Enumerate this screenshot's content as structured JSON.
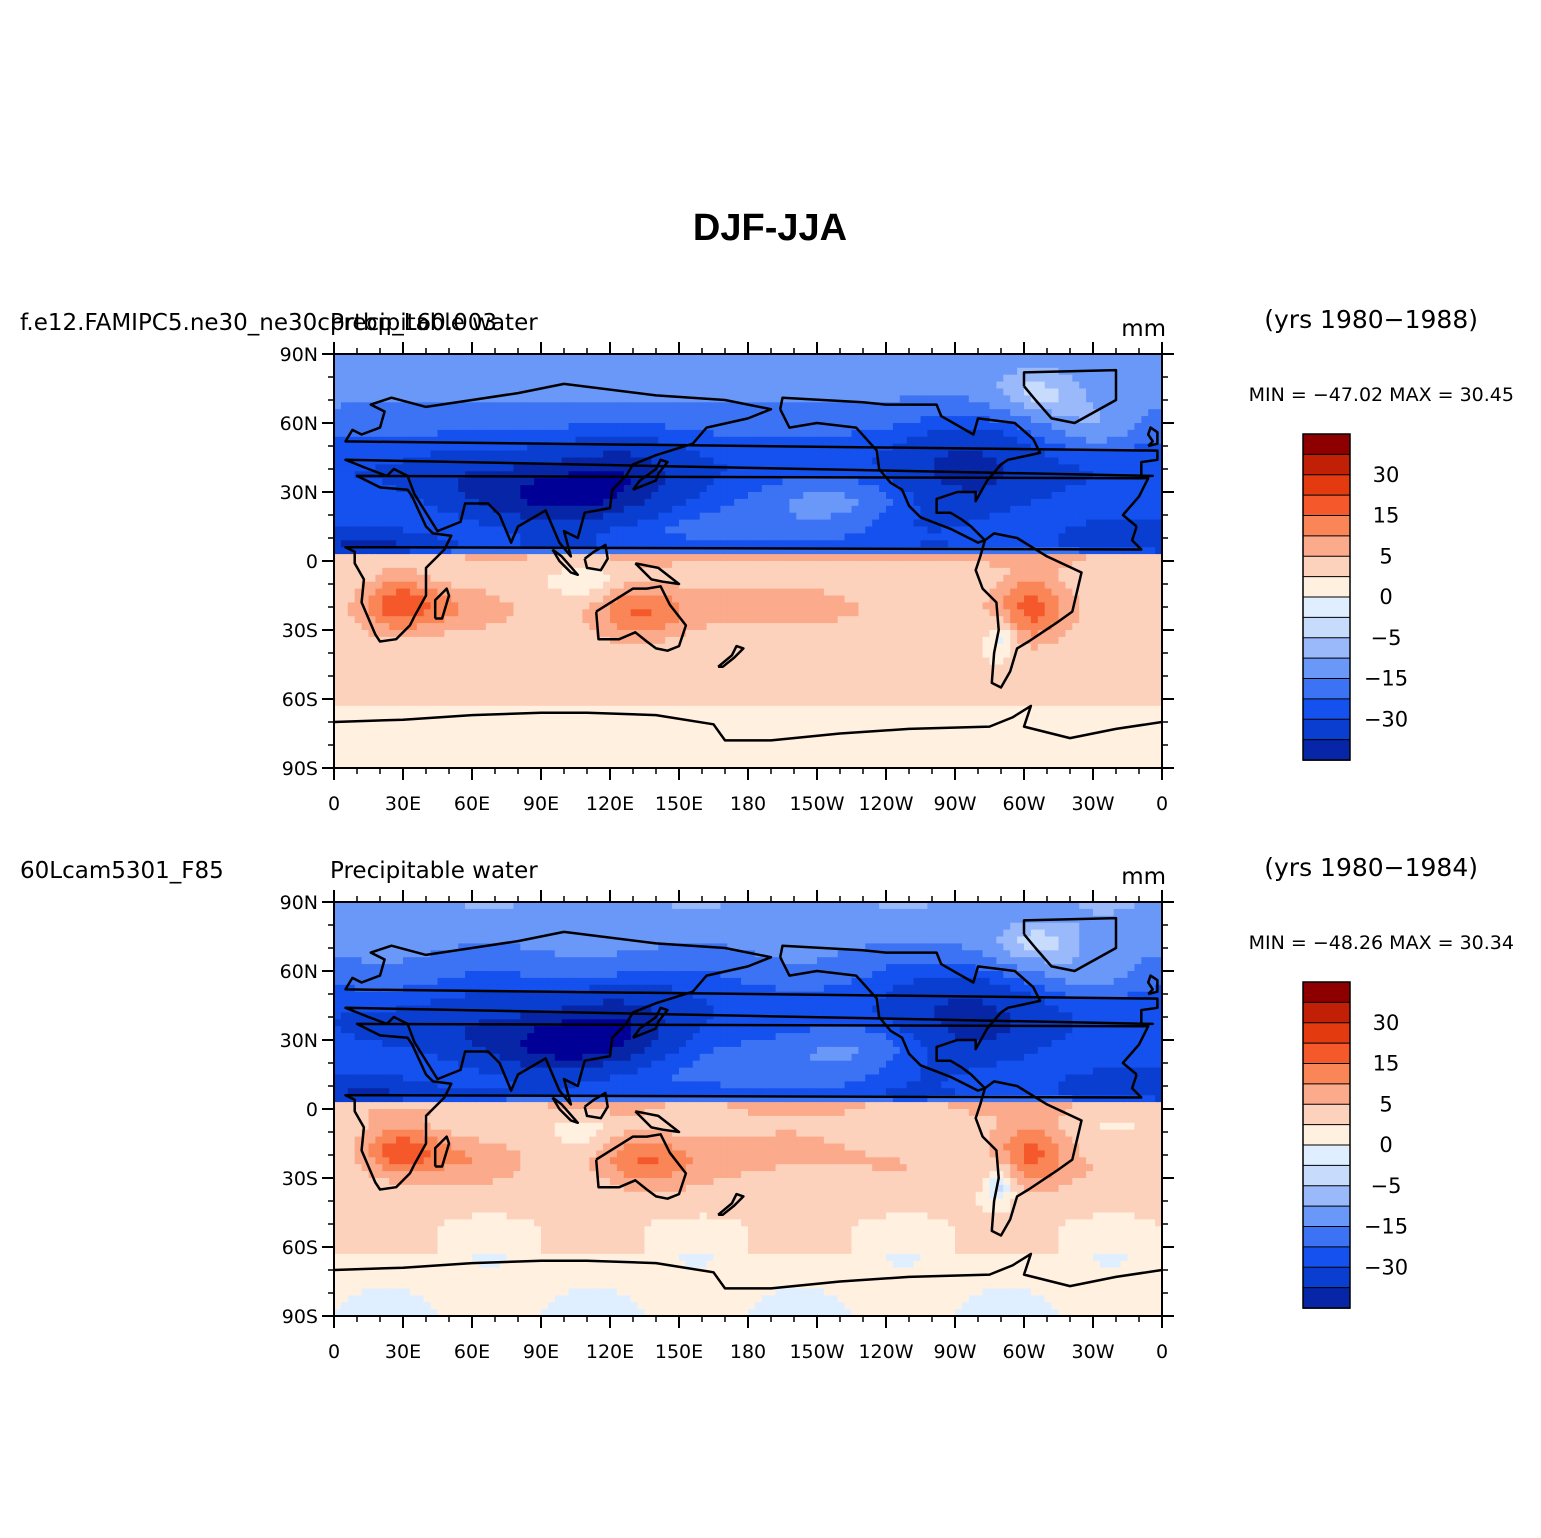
{
  "figure": {
    "title": "DJF-JJA"
  },
  "colors": {
    "cbar": [
      "#000097",
      "#0626a7",
      "#0a3ed1",
      "#1451ee",
      "#3c73f4",
      "#6a98f8",
      "#9ab9fb",
      "#c7dcfd",
      "#e0efff",
      "#fff0e0",
      "#fdd2bc",
      "#fbab8b",
      "#fa8556",
      "#f5582a",
      "#e33a10",
      "#c21f07",
      "#8e0000"
    ],
    "land_outline": "#000000"
  },
  "chart_data": [
    {
      "type": "heatmap",
      "case_name": "f.e12.FAMIPC5.ne30_ne30_pop_L60.003",
      "case_name_shown": "f.e12.FAMIPC5.ne30_ne30cprtbp_L60.003",
      "variable": "Precipitable water",
      "units": "mm",
      "years": "(yrs 1980−1988)",
      "stats": "MIN = −47.02  MAX =   30.45",
      "min": -47.02,
      "max": 30.45,
      "x_ticks": [
        "0",
        "30E",
        "60E",
        "90E",
        "120E",
        "150E",
        "180",
        "150W",
        "120W",
        "90W",
        "60W",
        "30W",
        "0"
      ],
      "y_ticks": [
        "90N",
        "60N",
        "30N",
        "0",
        "30S",
        "60S",
        "90S"
      ],
      "levels": [
        -40,
        -30,
        -20,
        -15,
        -10,
        -5,
        -2,
        0,
        2,
        5,
        10,
        15,
        20,
        30,
        40
      ],
      "level_labels": [
        "30",
        "15",
        "5",
        "0",
        "−5",
        "−15",
        "−30"
      ]
    },
    {
      "type": "heatmap",
      "case_name": "60Lcam5301_F85",
      "variable": "Precipitable water",
      "units": "mm",
      "years": "(yrs 1980−1984)",
      "stats": "MIN = −48.26  MAX =   30.34",
      "min": -48.26,
      "max": 30.34,
      "x_ticks": [
        "0",
        "30E",
        "60E",
        "90E",
        "120E",
        "150E",
        "180",
        "150W",
        "120W",
        "90W",
        "60W",
        "30W",
        "0"
      ],
      "y_ticks": [
        "90N",
        "60N",
        "30N",
        "0",
        "30S",
        "60S",
        "90S"
      ],
      "levels": [
        -40,
        -30,
        -20,
        -15,
        -10,
        -5,
        -2,
        0,
        2,
        5,
        10,
        15,
        20,
        30,
        40
      ],
      "level_labels": [
        "30",
        "15",
        "5",
        "0",
        "−5",
        "−15",
        "−30"
      ]
    }
  ]
}
